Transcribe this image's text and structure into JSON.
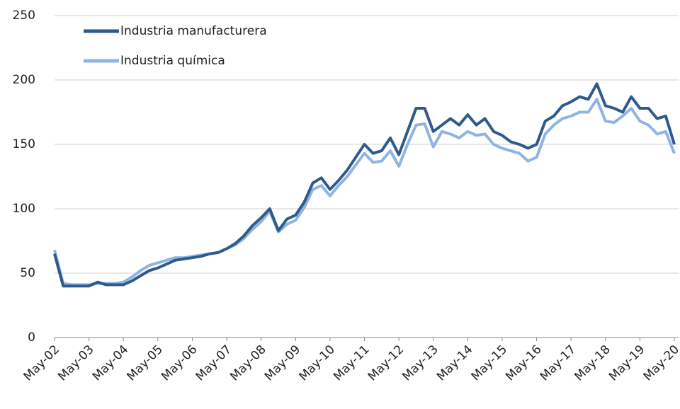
{
  "chart_data": {
    "type": "line",
    "categories": [
      "May-02",
      null,
      null,
      null,
      "May-03",
      null,
      null,
      null,
      "May-04",
      null,
      null,
      null,
      "May-05",
      null,
      null,
      null,
      "May-06",
      null,
      null,
      null,
      "May-07",
      null,
      null,
      null,
      "May-08",
      null,
      null,
      null,
      "May-09",
      null,
      null,
      null,
      "May-10",
      null,
      null,
      null,
      "May-11",
      null,
      null,
      null,
      "May-12",
      null,
      null,
      null,
      "May-13",
      null,
      null,
      null,
      "May-14",
      null,
      null,
      null,
      "May-15",
      null,
      null,
      null,
      "May-16",
      null,
      null,
      null,
      "May-17",
      null,
      null,
      null,
      "May-18",
      null,
      null,
      null,
      "May-19",
      null,
      null,
      null,
      "May-20"
    ],
    "series": [
      {
        "name": "Industria manufacturera",
        "color": "#2e5a8c",
        "values": [
          65,
          40,
          40,
          40,
          40,
          43,
          41,
          41,
          41,
          44,
          48,
          52,
          54,
          57,
          60,
          61,
          62,
          63,
          65,
          66,
          69,
          73,
          79,
          87,
          93,
          100,
          83,
          92,
          95,
          105,
          120,
          124,
          115,
          122,
          130,
          140,
          150,
          143,
          145,
          155,
          142,
          160,
          178,
          178,
          160,
          165,
          170,
          165,
          173,
          165,
          170,
          160,
          157,
          152,
          150,
          147,
          150,
          168,
          172,
          180,
          183,
          187,
          185,
          197,
          180,
          178,
          175,
          187,
          178,
          178,
          170,
          172,
          150
        ]
      },
      {
        "name": "Industria química",
        "color": "#8fb4e3",
        "values": [
          68,
          42,
          41,
          41,
          41,
          42,
          42,
          42,
          43,
          47,
          52,
          56,
          58,
          60,
          62,
          62,
          63,
          64,
          65,
          66,
          69,
          72,
          77,
          84,
          90,
          98,
          82,
          88,
          91,
          101,
          115,
          118,
          110,
          118,
          125,
          134,
          143,
          136,
          137,
          145,
          133,
          150,
          165,
          166,
          148,
          160,
          158,
          155,
          160,
          157,
          158,
          150,
          147,
          145,
          143,
          137,
          140,
          158,
          165,
          170,
          172,
          175,
          175,
          185,
          168,
          167,
          172,
          178,
          168,
          165,
          158,
          160,
          143
        ]
      }
    ],
    "ylim": [
      0,
      250
    ],
    "yticks": [
      0,
      50,
      100,
      150,
      200,
      250
    ],
    "grid": true,
    "legend": "upper left"
  }
}
